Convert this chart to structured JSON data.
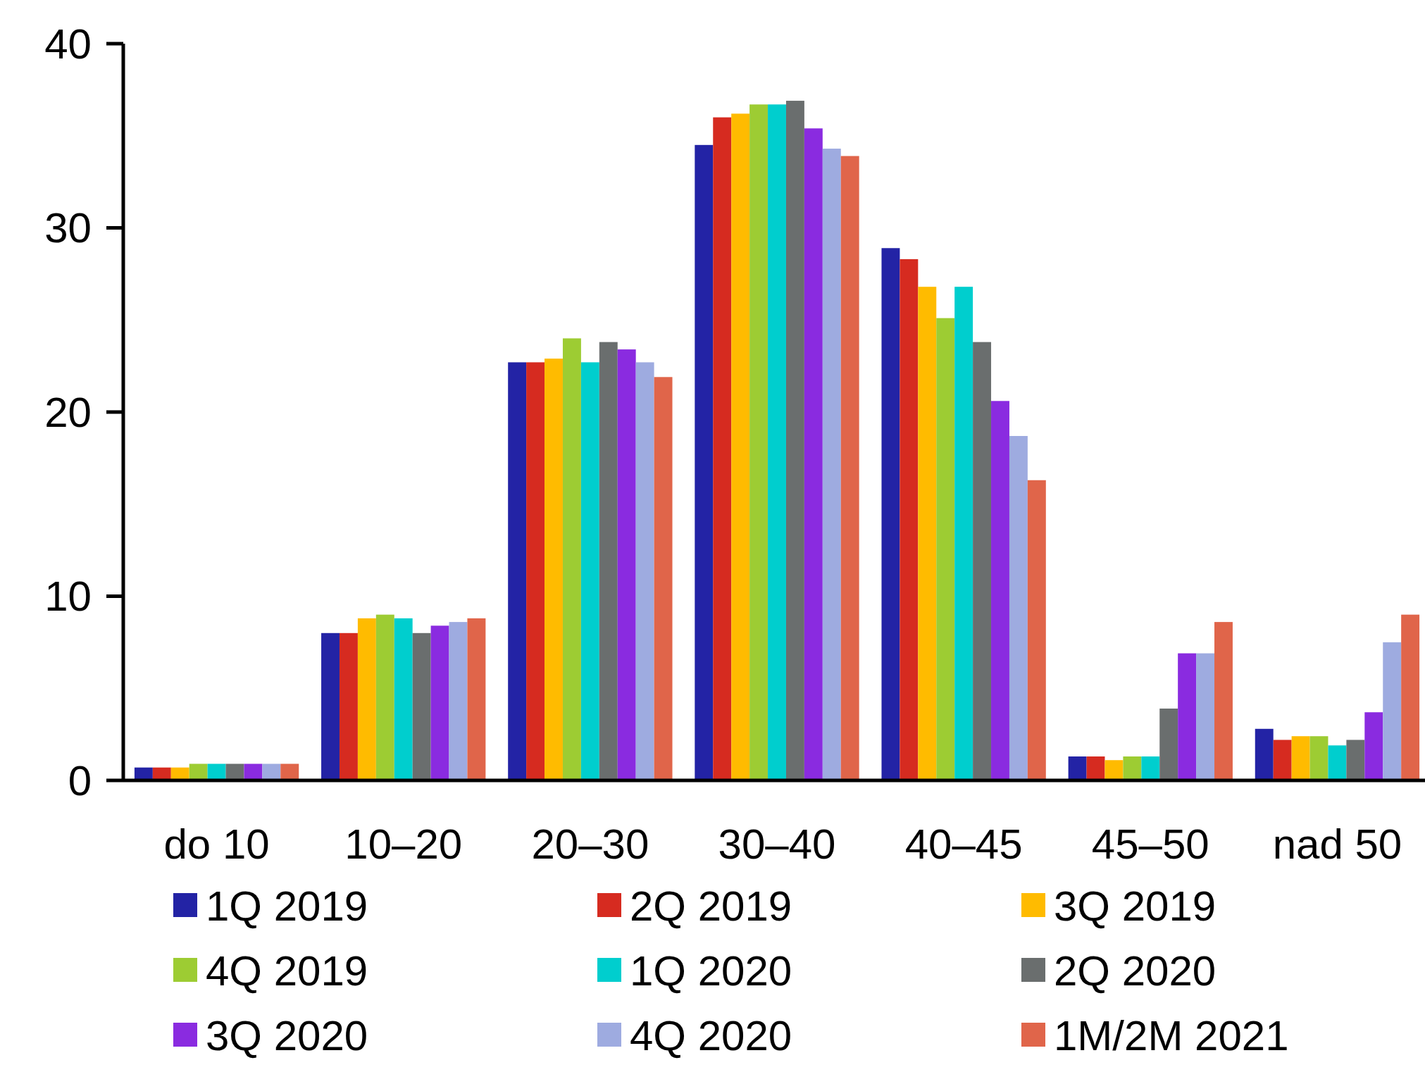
{
  "chart_data": {
    "type": "bar",
    "categories": [
      "do 10",
      "10–20",
      "20–30",
      "30–40",
      "40–45",
      "45–50",
      "nad 50"
    ],
    "series": [
      {
        "name": "1Q 2019",
        "color": "#2323a5",
        "values": [
          0.7,
          8.0,
          22.7,
          34.5,
          28.9,
          1.3,
          2.8
        ]
      },
      {
        "name": "2Q 2019",
        "color": "#d62b20",
        "values": [
          0.7,
          8.0,
          22.7,
          36.0,
          28.3,
          1.3,
          2.2
        ]
      },
      {
        "name": "3Q 2019",
        "color": "#ffbb00",
        "values": [
          0.7,
          8.8,
          22.9,
          36.2,
          26.8,
          1.1,
          2.4
        ]
      },
      {
        "name": "4Q 2019",
        "color": "#9dcc33",
        "values": [
          0.9,
          9.0,
          24.0,
          36.7,
          25.1,
          1.3,
          2.4
        ]
      },
      {
        "name": "1Q 2020",
        "color": "#00cece",
        "values": [
          0.9,
          8.8,
          22.7,
          36.7,
          26.8,
          1.3,
          1.9
        ]
      },
      {
        "name": "2Q 2020",
        "color": "#6a6e6e",
        "values": [
          0.9,
          8.0,
          23.8,
          36.9,
          23.8,
          3.9,
          2.2
        ]
      },
      {
        "name": "3Q 2020",
        "color": "#8a2be0",
        "values": [
          0.9,
          8.4,
          23.4,
          35.4,
          20.6,
          6.9,
          3.7
        ]
      },
      {
        "name": "4Q 2020",
        "color": "#9eabe0",
        "values": [
          0.9,
          8.6,
          22.7,
          34.3,
          18.7,
          6.9,
          7.5
        ]
      },
      {
        "name": "1M/2M 2021",
        "color": "#e0654a",
        "values": [
          0.9,
          8.8,
          21.9,
          33.9,
          16.3,
          8.6,
          9.0
        ]
      }
    ],
    "ylim": [
      0,
      40
    ],
    "yticks": [
      0,
      10,
      20,
      30,
      40
    ],
    "grid": false,
    "legend": "bottom"
  }
}
